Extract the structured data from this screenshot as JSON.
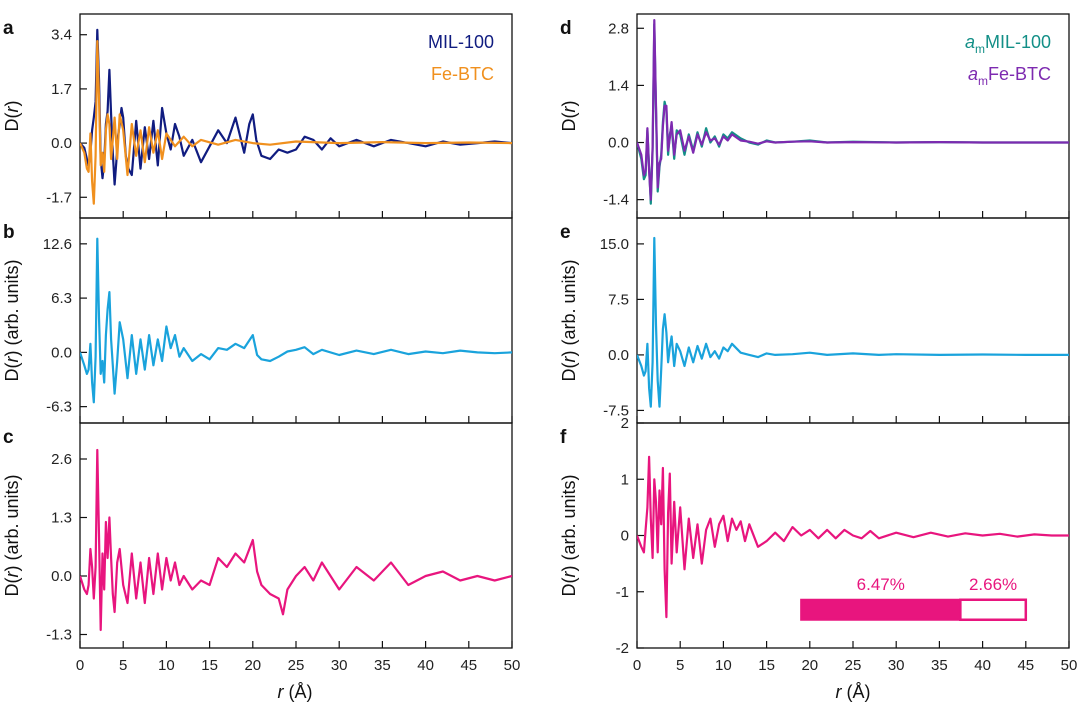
{
  "figure": {
    "x_axis_label": "r (Å)",
    "left_y_label_a": "D(r)",
    "left_y_label_bc": "D(r) (arb. units)"
  },
  "colors": {
    "navy": "#101c80",
    "orange": "#f0901e",
    "cyan": "#1aa3dc",
    "magenta": "#e8157e",
    "teal": "#138f87",
    "purple": "#7d2ab0"
  },
  "chart_data": [
    {
      "panel": "a",
      "type": "line",
      "ylabel": "D(r)",
      "xlim": [
        0,
        50
      ],
      "ylim": [
        -2.35,
        4.05
      ],
      "yticks": [
        3.4,
        1.7,
        0.0,
        -1.7
      ],
      "ytick_labels": [
        "3.4",
        "1.7",
        "0.0",
        "-1.7"
      ],
      "legend": "top-right",
      "series": [
        {
          "name": "MIL-100",
          "color": "#101c80",
          "x": [
            0,
            0.5,
            0.8,
            1.0,
            1.2,
            1.4,
            1.6,
            1.8,
            2.0,
            2.2,
            2.4,
            2.6,
            2.8,
            3.0,
            3.2,
            3.4,
            3.6,
            3.8,
            4.0,
            4.2,
            4.4,
            4.6,
            4.8,
            5.0,
            5.3,
            5.6,
            6.0,
            6.5,
            7.0,
            7.5,
            8.0,
            8.5,
            9.0,
            9.5,
            10.0,
            10.5,
            11.0,
            11.5,
            12.0,
            13.0,
            14.0,
            15.0,
            16.0,
            17.0,
            18.0,
            19.0,
            19.6,
            20.0,
            20.4,
            21.0,
            22.0,
            23.0,
            24.0,
            25.0,
            26.0,
            27.0,
            28.0,
            29.0,
            30.0,
            32.0,
            34.0,
            36.0,
            38.0,
            40.0,
            42.0,
            44.0,
            46.0,
            48.0,
            50.0
          ],
          "y": [
            0,
            -0.15,
            -0.5,
            -0.7,
            -0.3,
            0.4,
            0.8,
            1.3,
            3.55,
            2.0,
            -0.5,
            -1.1,
            -0.6,
            0.6,
            1.0,
            2.3,
            0.9,
            -0.3,
            -1.3,
            -0.6,
            0.2,
            0.6,
            1.1,
            0.8,
            -0.4,
            -0.8,
            -1.0,
            0.7,
            -0.8,
            0.5,
            -0.5,
            0.7,
            -0.7,
            1.1,
            0.3,
            -0.2,
            0.6,
            0.2,
            -0.4,
            0.1,
            -0.6,
            -0.1,
            0.4,
            0.0,
            0.8,
            -0.3,
            0.6,
            0.9,
            0.1,
            -0.4,
            -0.5,
            -0.2,
            -0.3,
            -0.2,
            0.2,
            0.1,
            -0.2,
            0.15,
            -0.1,
            0.1,
            -0.1,
            0.1,
            0.0,
            -0.1,
            0.05,
            -0.05,
            0.0,
            0.05,
            0.0
          ]
        },
        {
          "name": "Fe-BTC",
          "color": "#f0901e",
          "x": [
            0,
            0.5,
            0.8,
            1.0,
            1.2,
            1.4,
            1.6,
            1.8,
            2.0,
            2.2,
            2.4,
            2.6,
            2.8,
            3.0,
            3.2,
            3.4,
            3.6,
            3.8,
            4.0,
            4.3,
            4.6,
            5.0,
            5.5,
            6.0,
            6.5,
            7.0,
            7.5,
            8.0,
            8.5,
            9.0,
            9.5,
            10.0,
            10.5,
            11.0,
            12.0,
            13.0,
            14.0,
            16.0,
            18.0,
            20.0,
            22.0,
            25.0,
            30.0,
            35.0,
            40.0,
            45.0,
            50.0
          ],
          "y": [
            0,
            -0.3,
            -0.8,
            -0.9,
            0.3,
            -1.2,
            -1.9,
            -0.4,
            3.2,
            1.4,
            -0.7,
            -0.3,
            -0.9,
            0.4,
            0.9,
            0.6,
            -0.5,
            0.1,
            0.8,
            -0.5,
            0.9,
            0.4,
            -1.0,
            0.6,
            -0.4,
            0.4,
            -0.6,
            0.5,
            -0.3,
            0.4,
            -0.5,
            0.3,
            0.1,
            -0.1,
            0.2,
            -0.1,
            0.1,
            -0.05,
            0.1,
            0.0,
            -0.05,
            0.05,
            0.0,
            0.03,
            0.0,
            0.02,
            0.0
          ]
        }
      ]
    },
    {
      "panel": "b",
      "type": "line",
      "ylabel": "D(r) (arb. units)",
      "xlim": [
        0,
        50
      ],
      "ylim": [
        -8.2,
        15.6
      ],
      "yticks": [
        12.6,
        6.3,
        0.0,
        -6.3
      ],
      "ytick_labels": [
        "12.6",
        "6.3",
        "0.0",
        "-6.3"
      ],
      "series": [
        {
          "name": "",
          "color": "#1aa3dc",
          "x": [
            0,
            0.5,
            0.8,
            1.0,
            1.2,
            1.4,
            1.6,
            1.8,
            2.0,
            2.2,
            2.4,
            2.6,
            2.8,
            3.0,
            3.2,
            3.4,
            3.6,
            3.8,
            4.0,
            4.3,
            4.6,
            5.0,
            5.5,
            6.0,
            6.5,
            7.0,
            7.5,
            8.0,
            8.5,
            9.0,
            9.5,
            10.0,
            10.5,
            11.0,
            11.5,
            12.0,
            13.0,
            14.0,
            15.0,
            16.0,
            17.0,
            18.0,
            19.0,
            20.0,
            20.5,
            21.0,
            22.0,
            23.0,
            24.0,
            25.0,
            26.0,
            27.0,
            28.0,
            30.0,
            32.0,
            34.0,
            36.0,
            38.0,
            40.0,
            42.0,
            44.0,
            46.0,
            48.0,
            50.0
          ],
          "y": [
            0,
            -1.5,
            -2.5,
            -2.0,
            1.0,
            -3.5,
            -5.8,
            -0.5,
            13.2,
            4.0,
            -2.5,
            -1.0,
            -3.5,
            2.0,
            5.0,
            7.0,
            1.5,
            -1.5,
            -4.8,
            -1.0,
            3.5,
            1.5,
            -3.0,
            2.0,
            -2.5,
            1.5,
            -2.0,
            2.0,
            -1.5,
            1.5,
            -1.0,
            3.0,
            0.5,
            2.0,
            -0.5,
            0.5,
            -1.0,
            -0.2,
            -0.8,
            0.5,
            0.3,
            1.0,
            0.5,
            2.0,
            -0.3,
            -0.8,
            -1.0,
            -0.5,
            0.1,
            0.3,
            0.6,
            -0.2,
            0.3,
            -0.3,
            0.2,
            -0.2,
            0.3,
            -0.2,
            0.1,
            -0.1,
            0.2,
            0.0,
            -0.1,
            0.0
          ]
        }
      ]
    },
    {
      "panel": "c",
      "type": "line",
      "ylabel": "D(r) (arb. units)",
      "xlim": [
        0,
        50
      ],
      "ylim": [
        -1.6,
        3.4
      ],
      "yticks": [
        2.6,
        1.3,
        0.0,
        -1.3
      ],
      "ytick_labels": [
        "2.6",
        "1.3",
        "0.0",
        "-1.3"
      ],
      "series": [
        {
          "name": "",
          "color": "#e8157e",
          "x": [
            0,
            0.5,
            0.8,
            1.0,
            1.2,
            1.4,
            1.6,
            1.8,
            2.0,
            2.2,
            2.4,
            2.6,
            2.8,
            3.0,
            3.2,
            3.4,
            3.6,
            3.8,
            4.0,
            4.3,
            4.6,
            5.0,
            5.5,
            6.0,
            6.5,
            7.0,
            7.5,
            8.0,
            8.5,
            9.0,
            9.5,
            10.0,
            10.5,
            11.0,
            11.5,
            12.0,
            13.0,
            14.0,
            15.0,
            16.0,
            17.0,
            18.0,
            19.0,
            20.0,
            20.5,
            21.0,
            22.0,
            23.0,
            23.5,
            24.0,
            25.0,
            26.0,
            27.0,
            28.0,
            30.0,
            32.0,
            34.0,
            36.0,
            38.0,
            40.0,
            42.0,
            44.0,
            46.0,
            48.0,
            50.0
          ],
          "y": [
            0,
            -0.3,
            -0.4,
            -0.2,
            0.6,
            0.2,
            -0.5,
            0.2,
            2.8,
            0.9,
            -1.2,
            0.5,
            -0.3,
            1.2,
            0.4,
            1.3,
            0.4,
            -0.4,
            -0.8,
            0.3,
            0.6,
            -0.2,
            -0.6,
            0.5,
            -0.5,
            0.3,
            -0.6,
            0.4,
            -0.4,
            0.5,
            -0.3,
            0.4,
            -0.1,
            0.3,
            -0.2,
            0.0,
            -0.3,
            -0.1,
            -0.2,
            0.4,
            0.2,
            0.5,
            0.3,
            0.8,
            0.1,
            -0.2,
            -0.4,
            -0.5,
            -0.85,
            -0.3,
            0.0,
            0.2,
            -0.1,
            0.3,
            -0.3,
            0.2,
            -0.1,
            0.3,
            -0.2,
            0.0,
            0.1,
            -0.1,
            0.0,
            -0.1,
            0.0
          ]
        }
      ]
    },
    {
      "panel": "d",
      "type": "line",
      "ylabel": "D(r)",
      "xlim": [
        0,
        50
      ],
      "ylim": [
        -1.85,
        3.15
      ],
      "yticks": [
        2.8,
        1.4,
        0.0,
        -1.4
      ],
      "ytick_labels": [
        "2.8",
        "1.4",
        "0.0",
        "-1.4"
      ],
      "legend": "top-right",
      "series": [
        {
          "name": "aₘMIL-100",
          "color": "#138f87",
          "x": [
            0,
            0.5,
            0.8,
            1.0,
            1.2,
            1.4,
            1.6,
            1.8,
            2.0,
            2.2,
            2.4,
            2.6,
            2.8,
            3.0,
            3.2,
            3.4,
            3.6,
            3.8,
            4.0,
            4.3,
            4.6,
            5.0,
            5.5,
            6.0,
            6.5,
            7.0,
            7.5,
            8.0,
            8.5,
            9.0,
            9.5,
            10.0,
            10.5,
            11.0,
            12.0,
            13.0,
            14.0,
            15.0,
            16.0,
            18.0,
            20.0,
            22.0,
            25.0,
            30.0,
            35.0,
            40.0,
            45.0,
            50.0
          ],
          "y": [
            0,
            -0.4,
            -0.9,
            -0.8,
            0.3,
            -0.6,
            -1.5,
            -0.2,
            2.9,
            0.8,
            -1.2,
            -0.6,
            -0.3,
            0.5,
            1.0,
            0.8,
            -0.3,
            0.2,
            0.4,
            -0.4,
            0.3,
            0.2,
            -0.3,
            0.2,
            -0.2,
            0.25,
            -0.1,
            0.35,
            0.0,
            0.15,
            -0.1,
            0.2,
            0.1,
            0.25,
            0.1,
            0.0,
            -0.05,
            0.05,
            0.0,
            0.02,
            0.05,
            0.0,
            0.02,
            0.0,
            0.01,
            0.0,
            0.0,
            0.0
          ]
        },
        {
          "name": "aₘFe-BTC",
          "color": "#7d2ab0",
          "x": [
            0,
            0.5,
            0.8,
            1.0,
            1.2,
            1.4,
            1.6,
            1.8,
            2.0,
            2.2,
            2.4,
            2.6,
            2.8,
            3.0,
            3.2,
            3.4,
            3.6,
            3.8,
            4.0,
            4.3,
            4.6,
            5.0,
            5.5,
            6.0,
            6.5,
            7.0,
            7.5,
            8.0,
            8.5,
            9.0,
            9.5,
            10.0,
            10.5,
            11.0,
            12.0,
            13.0,
            14.0,
            15.0,
            16.0,
            18.0,
            20.0,
            22.0,
            25.0,
            30.0,
            35.0,
            40.0,
            45.0,
            50.0
          ],
          "y": [
            0,
            -0.3,
            -0.8,
            -0.7,
            0.35,
            -0.7,
            -1.4,
            -0.1,
            3.0,
            0.9,
            -1.1,
            -0.5,
            -0.4,
            0.4,
            0.9,
            0.9,
            -0.2,
            0.1,
            0.5,
            -0.3,
            0.2,
            0.3,
            -0.2,
            0.15,
            -0.25,
            0.2,
            -0.05,
            0.25,
            0.05,
            0.1,
            -0.05,
            0.15,
            0.05,
            0.2,
            0.05,
            0.02,
            -0.03,
            0.03,
            0.0,
            0.02,
            0.03,
            0.0,
            0.01,
            0.0,
            0.01,
            0.0,
            0.0,
            0.0
          ]
        }
      ]
    },
    {
      "panel": "e",
      "type": "line",
      "ylabel": "D(r) (arb. units)",
      "xlim": [
        0,
        50
      ],
      "ylim": [
        -9.2,
        18.5
      ],
      "yticks": [
        15.0,
        7.5,
        0.0,
        -7.5
      ],
      "ytick_labels": [
        "15.0",
        "7.5",
        "0.0",
        "-7.5"
      ],
      "series": [
        {
          "name": "",
          "color": "#1aa3dc",
          "x": [
            0,
            0.5,
            0.8,
            1.0,
            1.2,
            1.4,
            1.6,
            1.8,
            2.0,
            2.2,
            2.4,
            2.6,
            2.8,
            3.0,
            3.2,
            3.4,
            3.6,
            3.8,
            4.0,
            4.3,
            4.6,
            5.0,
            5.5,
            6.0,
            6.5,
            7.0,
            7.5,
            8.0,
            8.5,
            9.0,
            9.5,
            10.0,
            10.5,
            11.0,
            12.0,
            13.0,
            14.0,
            15.0,
            16.0,
            18.0,
            20.0,
            22.0,
            25.0,
            28.0,
            30.0,
            35.0,
            40.0,
            45.0,
            50.0
          ],
          "y": [
            0,
            -1.5,
            -2.8,
            -2.2,
            1.5,
            -4.5,
            -7.0,
            -1.0,
            15.8,
            4.0,
            -3.5,
            -7.0,
            -2.0,
            3.5,
            5.5,
            3.0,
            -1.0,
            1.0,
            2.5,
            -1.5,
            1.5,
            0.5,
            -1.5,
            1.0,
            -1.0,
            1.2,
            -0.5,
            1.5,
            -0.3,
            0.5,
            -0.5,
            1.0,
            0.5,
            1.5,
            0.3,
            0.0,
            -0.3,
            0.2,
            0.0,
            0.1,
            0.3,
            0.0,
            0.2,
            0.0,
            0.1,
            0.0,
            0.05,
            0.0,
            0.0
          ]
        }
      ]
    },
    {
      "panel": "f",
      "type": "line",
      "ylabel": "D(r) (arb. units)",
      "xlim": [
        0,
        50
      ],
      "ylim": [
        -2,
        2
      ],
      "yticks": [
        2,
        1,
        0,
        -1,
        -2
      ],
      "ytick_labels": [
        "2",
        "1",
        "0",
        "-1",
        "-2"
      ],
      "annotation_bar": {
        "segments": [
          6.47,
          2.66
        ],
        "labels": [
          "6.47%",
          "2.66%"
        ],
        "x_range": [
          19,
          45
        ],
        "y": -1.32
      },
      "series": [
        {
          "name": "",
          "color": "#e8157e",
          "x": [
            0,
            0.5,
            0.8,
            1.0,
            1.2,
            1.4,
            1.6,
            1.8,
            2.0,
            2.2,
            2.4,
            2.6,
            2.8,
            3.0,
            3.2,
            3.4,
            3.6,
            3.8,
            4.0,
            4.3,
            4.6,
            5.0,
            5.5,
            6.0,
            6.5,
            7.0,
            7.5,
            8.0,
            8.5,
            9.0,
            9.5,
            10.0,
            10.5,
            11.0,
            11.5,
            12.0,
            12.5,
            13.0,
            14.0,
            15.0,
            16.0,
            17.0,
            18.0,
            19.0,
            20.0,
            21.0,
            22.0,
            23.0,
            24.0,
            25.0,
            26.0,
            27.0,
            28.0,
            30.0,
            32.0,
            34.0,
            36.0,
            38.0,
            40.0,
            42.0,
            44.0,
            46.0,
            48.0,
            50.0
          ],
          "y": [
            0,
            -0.2,
            -0.3,
            0.1,
            0.5,
            1.4,
            0.3,
            -0.4,
            1.0,
            0.6,
            -0.3,
            0.8,
            0.2,
            1.2,
            -0.6,
            -1.45,
            0.4,
            1.1,
            -0.5,
            0.6,
            -0.3,
            0.5,
            -0.6,
            0.3,
            -0.4,
            0.2,
            -0.5,
            0.1,
            0.3,
            -0.2,
            0.2,
            0.35,
            -0.1,
            0.3,
            0.1,
            0.25,
            -0.1,
            0.2,
            -0.2,
            -0.1,
            0.05,
            -0.1,
            0.15,
            0.0,
            0.1,
            -0.05,
            0.1,
            -0.05,
            0.1,
            0.0,
            -0.05,
            0.08,
            -0.05,
            0.05,
            -0.03,
            0.05,
            -0.02,
            0.04,
            0.0,
            0.03,
            -0.02,
            0.02,
            0.0,
            0.0
          ]
        }
      ]
    }
  ]
}
